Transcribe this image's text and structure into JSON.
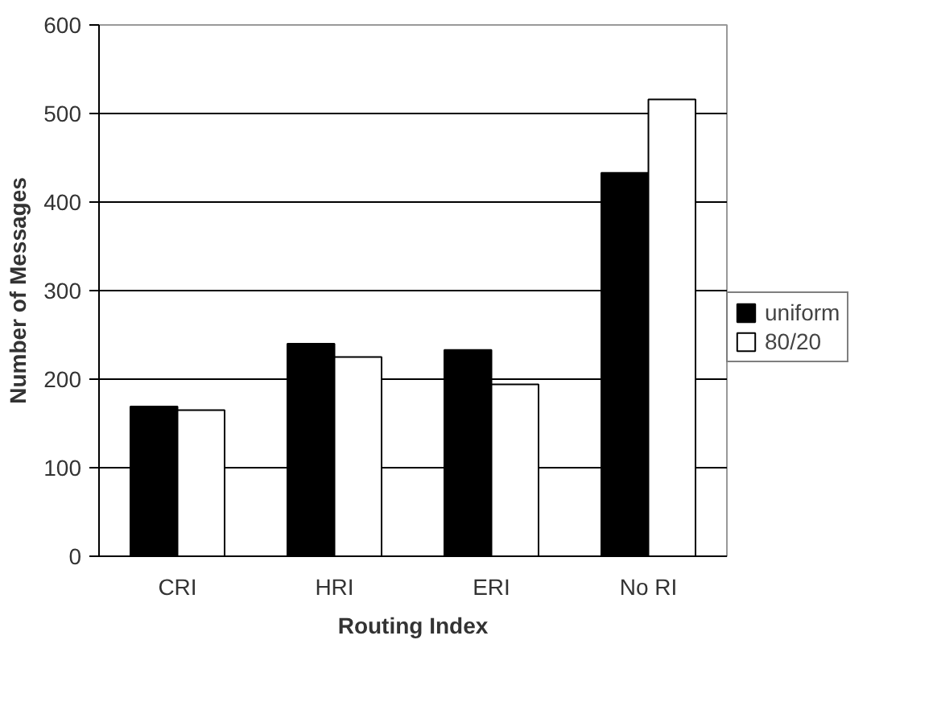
{
  "chart_data": {
    "type": "bar",
    "xlabel": "Routing Index",
    "ylabel": "Number of Messages",
    "categories": [
      "CRI",
      "HRI",
      "ERI",
      "No RI"
    ],
    "series": [
      {
        "name": "uniform",
        "color": "#000000",
        "values": [
          169,
          240,
          233,
          433
        ]
      },
      {
        "name": "80/20",
        "color": "#ffffff",
        "values": [
          165,
          225,
          194,
          516
        ]
      }
    ],
    "ylim": [
      0,
      600
    ],
    "yticks": [
      0,
      100,
      200,
      300,
      400,
      500,
      600
    ],
    "grid": "y",
    "legend": "right"
  }
}
